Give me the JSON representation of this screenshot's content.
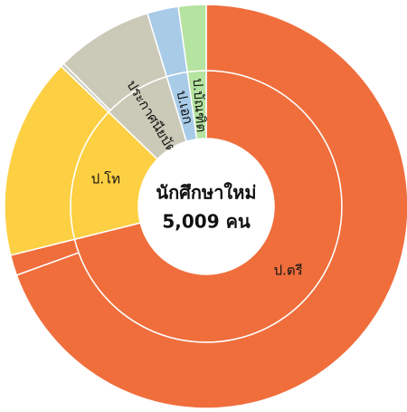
{
  "chart_data": {
    "type": "sunburst",
    "center_title": "นักศึกษาใหม่",
    "center_value": "5,009 คน",
    "categories": [
      "ป.ตรี",
      "ป.โท",
      "ประกาศนียบัตร",
      "ป.เอก",
      "ป.บัณฑิต"
    ],
    "values": [
      3562,
      807,
      404,
      125,
      111
    ],
    "colors": [
      "#ef6e3c",
      "#fdd043",
      "#cbc9b7",
      "#a8cbe8",
      "#b5e3a0"
    ],
    "outer_values": [
      [
        3480,
        82
      ],
      [
        807
      ],
      [
        14,
        390
      ],
      [
        125
      ],
      [
        111
      ]
    ]
  }
}
